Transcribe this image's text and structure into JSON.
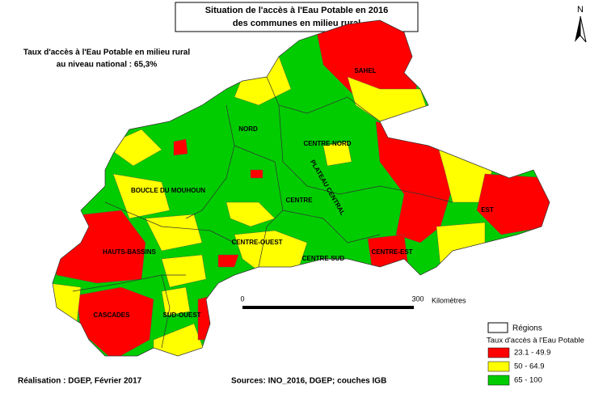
{
  "title": {
    "line1": "Situation de l'accès à l'Eau Potable en 2016",
    "line2": "des communes en milieu rural"
  },
  "national_rate": {
    "line1": "Taux d'accès à l'Eau Potable en milieu rural",
    "line2": "au niveau national : 65,3%"
  },
  "north": "N",
  "regions": [
    "SAHEL",
    "NORD",
    "CENTRE-NORD",
    "BOUCLE DU MOUHOUN",
    "PLATEAU CENTRAL",
    "CENTRE",
    "EST",
    "CENTRE-OUEST",
    "HAUTS-BASSINS",
    "CENTRE-SUD",
    "CENTRE-EST",
    "CASCADES",
    "SUD-OUEST"
  ],
  "scale": {
    "start": "0",
    "end": "300",
    "unit": "Kilomètres"
  },
  "legend": {
    "regions": "Régions",
    "title": "Taux d'accès à l'Eau Potable",
    "classes": [
      {
        "label": "23.1 - 49.9",
        "color": "#ff0000"
      },
      {
        "label": "50 - 64.9",
        "color": "#ffff00"
      },
      {
        "label": "65 - 100",
        "color": "#00cc00"
      }
    ]
  },
  "footer": {
    "credit": "Réalisation : DGEP, Février 2017",
    "sources": "Sources: INO_2016, DGEP; couches IGB"
  }
}
